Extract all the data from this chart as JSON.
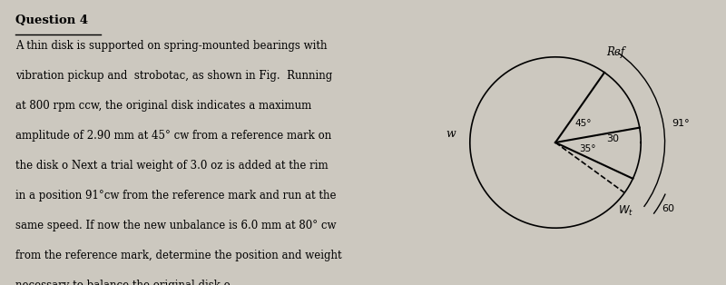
{
  "title": "Question 4",
  "body_text": [
    "A thin disk is supported on spring-mounted bearings with",
    "vibration pickup and  strobotac, as shown in Fig.  Running",
    "at 800 rpm ccw, the original disk indicates a maximum",
    "amplitude of 2.90 mm at 45° cw from a reference mark on",
    "the disk o Next a trial weight of 3.0 oz is added at the rim",
    "in a position 91°cw from the reference mark and run at the",
    "same speed. If now the new unbalance is 6.0 mm at 80° cw",
    "from the reference mark, determine the position and weight",
    "necessary to balance the original disk o."
  ],
  "bg_color": "#ccc8bf",
  "ref_label": "Ref",
  "arc_label_91": "91°",
  "arc_label_60": "60",
  "label_45": "45°",
  "label_35": "35°",
  "label_30": "30",
  "label_wt": "W₁",
  "label_w": "w",
  "ref_math_deg": 55,
  "cw_45_deg": 45,
  "cw_80_deg": 80,
  "cw_91_deg": 91
}
